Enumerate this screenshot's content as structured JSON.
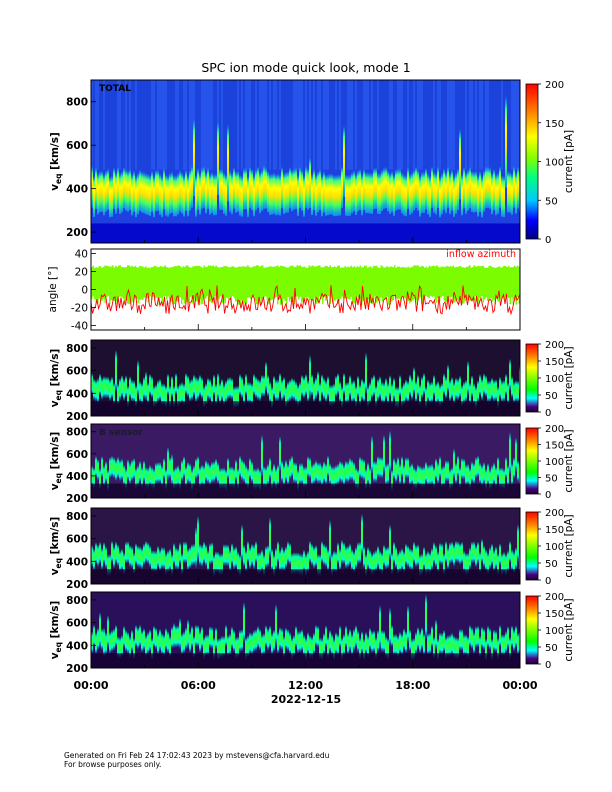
{
  "title": "SPC ion mode quick look, mode 1",
  "chart_data": {
    "type": "heatmap",
    "title": "SPC ion mode quick look, mode 1",
    "xlabel": "2022-12-15",
    "x_ticks": [
      "00:00",
      "06:00",
      "12:00",
      "18:00",
      "00:00"
    ],
    "panels": [
      {
        "kind": "spectrogram",
        "label": "TOTAL",
        "ylabel": "v_eq [km/s]",
        "ylabel_main": "v",
        "ylabel_sub": "eq",
        "ylabel_unit": "[km/s]",
        "y_ticks": [
          "200",
          "400",
          "600",
          "800"
        ],
        "ylim": [
          150,
          900
        ],
        "colorbar_label": "current [pA]",
        "colorbar_ticks": [
          "0",
          "50",
          "100",
          "150",
          "200"
        ],
        "colorbar_range": [
          0,
          200
        ],
        "colorscale": "rainbow",
        "background": "#1f3fe0"
      },
      {
        "kind": "angle",
        "label": "inflow azimuth",
        "ylabel": "angle [°]",
        "y_ticks": [
          "-40",
          "-20",
          "0",
          "20",
          "40"
        ],
        "ylim": [
          -45,
          45
        ],
        "series": [
          {
            "name": "",
            "color": "#7cfc00",
            "upper_deg": 27,
            "lower_deg": -12
          },
          {
            "name": "inflow azimuth",
            "color": "#ff0000",
            "upper_deg": 5,
            "lower_deg": -27
          }
        ]
      },
      {
        "kind": "spectrogram",
        "label": "",
        "ylabel_main": "v",
        "ylabel_sub": "eq",
        "ylabel_unit": "[km/s]",
        "y_ticks": [
          "200",
          "400",
          "600",
          "800"
        ],
        "ylim": [
          200,
          870
        ],
        "colorbar_label": "current [pA]",
        "colorbar_ticks": [
          "0",
          "50",
          "100",
          "150",
          "200"
        ],
        "colorbar_range": [
          0,
          200
        ],
        "colorscale": "dark",
        "background": "#1c0f2f"
      },
      {
        "kind": "spectrogram",
        "label": "B sensor",
        "ylabel_main": "v",
        "ylabel_sub": "eq",
        "ylabel_unit": "[km/s]",
        "y_ticks": [
          "200",
          "400",
          "600",
          "800"
        ],
        "ylim": [
          200,
          870
        ],
        "colorbar_label": "current [pA]",
        "colorbar_ticks": [
          "0",
          "50",
          "100",
          "150",
          "200"
        ],
        "colorbar_range": [
          0,
          200
        ],
        "colorscale": "dark",
        "background": "#3a1a63"
      },
      {
        "kind": "spectrogram",
        "label": "",
        "ylabel_main": "v",
        "ylabel_sub": "eq",
        "ylabel_unit": "[km/s]",
        "y_ticks": [
          "200",
          "400",
          "600",
          "800"
        ],
        "ylim": [
          200,
          870
        ],
        "colorbar_label": "current [pA]",
        "colorbar_ticks": [
          "0",
          "50",
          "100",
          "150",
          "200"
        ],
        "colorbar_range": [
          0,
          200
        ],
        "colorscale": "dark",
        "background": "#2b1446"
      },
      {
        "kind": "spectrogram",
        "label": "",
        "ylabel_main": "v",
        "ylabel_sub": "eq",
        "ylabel_unit": "[km/s]",
        "y_ticks": [
          "200",
          "400",
          "600",
          "800"
        ],
        "ylim": [
          200,
          870
        ],
        "colorbar_label": "current [pA]",
        "colorbar_ticks": [
          "0",
          "50",
          "100",
          "150",
          "200"
        ],
        "colorbar_range": [
          0,
          200
        ],
        "colorscale": "dark",
        "background": "#2a0f5a"
      }
    ]
  },
  "footer": {
    "line1": "Generated on Fri Feb 24 17:02:43 2023 by mstevens@cfa.harvard.edu",
    "line2": "For browse purposes only."
  }
}
